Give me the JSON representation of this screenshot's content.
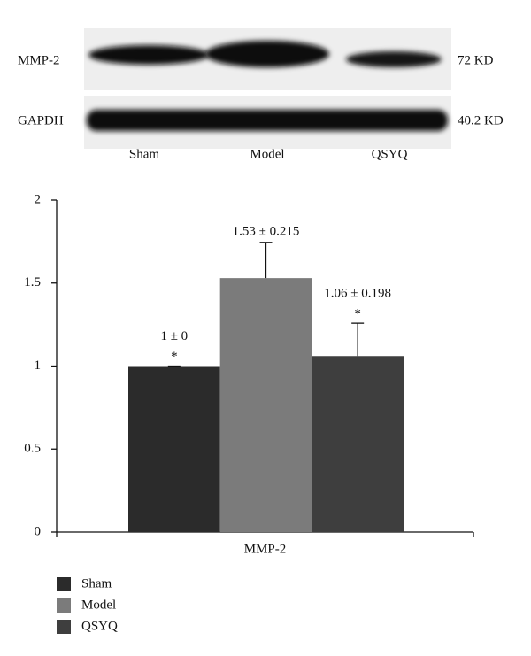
{
  "blot": {
    "rows": [
      {
        "label": "MMP-2",
        "size": "72 KD"
      },
      {
        "label": "GAPDH",
        "size": "40.2 KD"
      }
    ],
    "lanes": [
      "Sham",
      "Model",
      "QSYQ"
    ]
  },
  "chart_data": {
    "type": "bar",
    "categories": [
      "MMP-2"
    ],
    "series": [
      {
        "name": "Sham",
        "color": "#2b2b2b",
        "values": [
          1
        ],
        "errors": [
          0
        ],
        "value_labels": [
          "1 ± 0"
        ],
        "annotation": "*"
      },
      {
        "name": "Model",
        "color": "#7b7b7b",
        "values": [
          1.53
        ],
        "errors": [
          0.215
        ],
        "value_labels": [
          "1.53 ± 0.215"
        ]
      },
      {
        "name": "QSYQ",
        "color": "#3e3e3e",
        "values": [
          1.06
        ],
        "errors": [
          0.198
        ],
        "value_labels": [
          "1.06 ± 0.198"
        ],
        "annotation": "*"
      }
    ],
    "ylim": [
      0,
      2
    ],
    "yticks": [
      0,
      0.5,
      1,
      1.5,
      2
    ],
    "legend": "bottom-left"
  }
}
